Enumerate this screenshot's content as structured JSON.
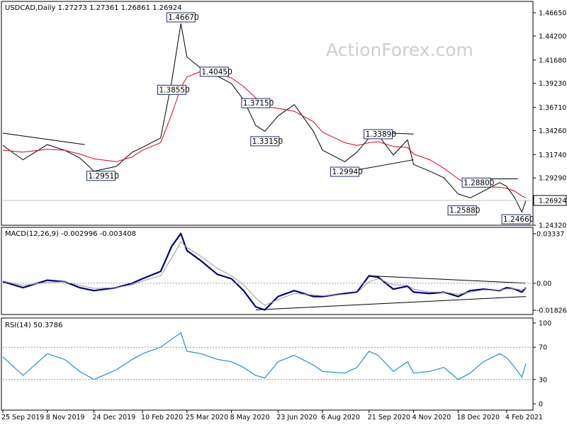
{
  "watermark": "ActionForex.com",
  "price_panel": {
    "header": "USDCAD,Daily   1.27273 1.27361 1.26861 1.26924",
    "current_price": "1.26924",
    "y_ticks": [
      "1.46650",
      "1.44200",
      "1.41680",
      "1.39230",
      "1.36710",
      "1.34260",
      "1.31740",
      "1.29290",
      "1.26924",
      "1.24320"
    ]
  },
  "macd_panel": {
    "header": "MACD(12,26,9) -0.002996 -0.003408",
    "y_ticks": [
      "0.03337",
      "0.00",
      "-0.018262"
    ],
    "current_value": "0.00"
  },
  "rsi_panel": {
    "header": "RSI(14) 50.3786",
    "y_ticks": [
      "100",
      "70",
      "30",
      "0"
    ],
    "levels": [
      70,
      30
    ]
  },
  "x_ticks": [
    "25 Sep 2019",
    "8 Nov 2019",
    "24 Dec 2019",
    "10 Feb 2020",
    "25 Mar 2020",
    "8 May 2020",
    "23 Jun 2020",
    "6 Aug 2020",
    "21 Sep 2020",
    "4 Nov 2020",
    "18 Dec 2020",
    "4 Feb 2021"
  ],
  "chart_data": [
    {
      "type": "line",
      "title": "USDCAD,Daily",
      "ohlc_last": {
        "open": 1.27273,
        "high": 1.27361,
        "low": 1.26861,
        "close": 1.26924
      },
      "x": [
        "2019-09-25",
        "2019-10-15",
        "2019-11-08",
        "2019-11-25",
        "2019-12-10",
        "2019-12-24",
        "2020-01-15",
        "2020-01-31",
        "2020-02-10",
        "2020-02-28",
        "2020-03-10",
        "2020-03-19",
        "2020-03-25",
        "2020-04-08",
        "2020-04-24",
        "2020-05-08",
        "2020-05-20",
        "2020-06-01",
        "2020-06-10",
        "2020-06-23",
        "2020-07-09",
        "2020-07-28",
        "2020-08-06",
        "2020-08-28",
        "2020-09-09",
        "2020-09-21",
        "2020-09-30",
        "2020-10-15",
        "2020-10-29",
        "2020-11-04",
        "2020-11-20",
        "2020-12-04",
        "2020-12-18",
        "2020-12-30",
        "2021-01-12",
        "2021-01-28",
        "2021-02-04",
        "2021-02-12",
        "2021-02-19",
        "2021-02-23"
      ],
      "series": [
        {
          "values": [
            1.327,
            1.312,
            1.328,
            1.322,
            1.314,
            1.3,
            1.305,
            1.32,
            1.325,
            1.335,
            1.395,
            1.455,
            1.42,
            1.408,
            1.4,
            1.392,
            1.375,
            1.348,
            1.342,
            1.358,
            1.37,
            1.342,
            1.322,
            1.31,
            1.32,
            1.335,
            1.338,
            1.317,
            1.333,
            1.307,
            1.3,
            1.293,
            1.276,
            1.272,
            1.279,
            1.288,
            1.284,
            1.272,
            1.257,
            1.269
          ]
        },
        {
          "values": [
            1.322,
            1.32,
            1.323,
            1.322,
            1.318,
            1.313,
            1.31,
            1.315,
            1.322,
            1.33,
            1.36,
            1.388,
            1.399,
            1.405,
            1.403,
            1.398,
            1.389,
            1.377,
            1.368,
            1.366,
            1.363,
            1.352,
            1.341,
            1.33,
            1.327,
            1.33,
            1.331,
            1.326,
            1.325,
            1.318,
            1.312,
            1.303,
            1.292,
            1.284,
            1.284,
            1.283,
            1.282,
            1.279,
            1.274,
            1.272
          ]
        }
      ],
      "annotations": [
        {
          "text": "1.46670",
          "value": 1.4667,
          "date": "2020-03-19"
        },
        {
          "text": "1.40450",
          "value": 1.4045,
          "date": "2020-04-21"
        },
        {
          "text": "1.38550",
          "value": 1.3855,
          "date": "2020-03-10"
        },
        {
          "text": "1.37150",
          "value": 1.3715,
          "date": "2020-06-01"
        },
        {
          "text": "1.33150",
          "value": 1.3315,
          "date": "2020-06-10"
        },
        {
          "text": "1.29510",
          "value": 1.2951,
          "date": "2019-12-31"
        },
        {
          "text": "1.29940",
          "value": 1.2994,
          "date": "2020-08-28"
        },
        {
          "text": "1.33890",
          "value": 1.3389,
          "date": "2020-09-30"
        },
        {
          "text": "1.28800",
          "value": 1.288,
          "date": "2021-01-05"
        },
        {
          "text": "1.25880",
          "value": 1.2588,
          "date": "2020-12-22"
        },
        {
          "text": "1.24660",
          "value": 1.2466,
          "date": "2021-02-21"
        }
      ],
      "trendlines": [
        {
          "from": [
            "2019-09-25",
            1.34
          ],
          "to": [
            "2019-12-15",
            1.328
          ]
        },
        {
          "from": [
            "2020-08-28",
            1.299
          ],
          "to": [
            "2020-11-04",
            1.312
          ]
        },
        {
          "from": [
            "2020-09-21",
            1.341
          ],
          "to": [
            "2020-11-04",
            1.339
          ]
        },
        {
          "from": [
            "2020-12-30",
            1.292
          ],
          "to": [
            "2021-02-15",
            1.292
          ]
        }
      ],
      "ylim": [
        1.2432,
        1.4665
      ],
      "grid": false,
      "legend": "none"
    },
    {
      "type": "line",
      "title": "MACD(12,26,9)",
      "last": {
        "macd": -0.002996,
        "signal": -0.003408
      },
      "x": [
        "2019-09-25",
        "2019-10-15",
        "2019-11-08",
        "2019-11-25",
        "2019-12-10",
        "2019-12-24",
        "2020-01-15",
        "2020-01-31",
        "2020-02-10",
        "2020-02-28",
        "2020-03-10",
        "2020-03-19",
        "2020-03-25",
        "2020-04-08",
        "2020-04-24",
        "2020-05-08",
        "2020-05-20",
        "2020-06-01",
        "2020-06-10",
        "2020-06-23",
        "2020-07-09",
        "2020-07-28",
        "2020-08-06",
        "2020-08-28",
        "2020-09-09",
        "2020-09-21",
        "2020-09-30",
        "2020-10-15",
        "2020-10-29",
        "2020-11-04",
        "2020-11-20",
        "2020-12-04",
        "2020-12-18",
        "2020-12-30",
        "2021-01-12",
        "2021-01-28",
        "2021-02-04",
        "2021-02-12",
        "2021-02-19",
        "2021-02-23"
      ],
      "series": [
        {
          "values": [
            0.001,
            -0.003,
            0.002,
            0.001,
            -0.003,
            -0.005,
            -0.003,
            0.0,
            0.003,
            0.008,
            0.025,
            0.0335,
            0.022,
            0.015,
            0.006,
            0.003,
            -0.005,
            -0.016,
            -0.018,
            -0.009,
            -0.005,
            -0.009,
            -0.009,
            -0.007,
            -0.006,
            0.005,
            0.004,
            -0.004,
            -0.002,
            -0.006,
            -0.007,
            -0.006,
            -0.009,
            -0.005,
            -0.004,
            -0.005,
            -0.003,
            -0.004,
            -0.006,
            -0.003
          ]
        },
        {
          "values": [
            0.0015,
            -0.0015,
            0.0005,
            0.001,
            -0.0015,
            -0.0035,
            -0.003,
            -0.001,
            0.0015,
            0.005,
            0.017,
            0.028,
            0.024,
            0.018,
            0.01,
            0.005,
            -0.001,
            -0.01,
            -0.015,
            -0.011,
            -0.007,
            -0.008,
            -0.0085,
            -0.0075,
            -0.0065,
            0.001,
            0.003,
            -0.001,
            -0.0015,
            -0.004,
            -0.006,
            -0.006,
            -0.0075,
            -0.006,
            -0.0045,
            -0.0048,
            -0.0038,
            -0.0038,
            -0.0045,
            -0.0034
          ]
        }
      ],
      "trendlines": [
        {
          "from": [
            "2020-06-01",
            -0.018
          ],
          "to": [
            "2021-02-23",
            -0.009
          ]
        },
        {
          "from": [
            "2020-09-21",
            0.005
          ],
          "to": [
            "2021-02-23",
            0.0
          ]
        }
      ],
      "ylim": [
        -0.018262,
        0.03337
      ],
      "grid": false,
      "legend": "none"
    },
    {
      "type": "line",
      "title": "RSI(14)",
      "last": 50.3786,
      "x": [
        "2019-09-25",
        "2019-10-15",
        "2019-11-08",
        "2019-11-25",
        "2019-12-10",
        "2019-12-24",
        "2020-01-15",
        "2020-01-31",
        "2020-02-10",
        "2020-02-28",
        "2020-03-10",
        "2020-03-19",
        "2020-03-25",
        "2020-04-08",
        "2020-04-24",
        "2020-05-08",
        "2020-05-20",
        "2020-06-01",
        "2020-06-10",
        "2020-06-23",
        "2020-07-09",
        "2020-07-28",
        "2020-08-06",
        "2020-08-28",
        "2020-09-09",
        "2020-09-21",
        "2020-09-30",
        "2020-10-15",
        "2020-10-29",
        "2020-11-04",
        "2020-11-20",
        "2020-12-04",
        "2020-12-18",
        "2020-12-30",
        "2021-01-12",
        "2021-01-28",
        "2021-02-04",
        "2021-02-12",
        "2021-02-19",
        "2021-02-23"
      ],
      "series": [
        {
          "values": [
            58,
            35,
            62,
            55,
            40,
            30,
            42,
            55,
            62,
            70,
            80,
            88,
            65,
            62,
            55,
            52,
            45,
            35,
            32,
            52,
            60,
            48,
            40,
            38,
            45,
            65,
            60,
            40,
            52,
            38,
            40,
            45,
            30,
            38,
            52,
            62,
            57,
            45,
            33,
            50
          ]
        }
      ],
      "levels": [
        70,
        30
      ],
      "ylim": [
        0,
        100
      ],
      "grid": false,
      "legend": "none"
    }
  ]
}
